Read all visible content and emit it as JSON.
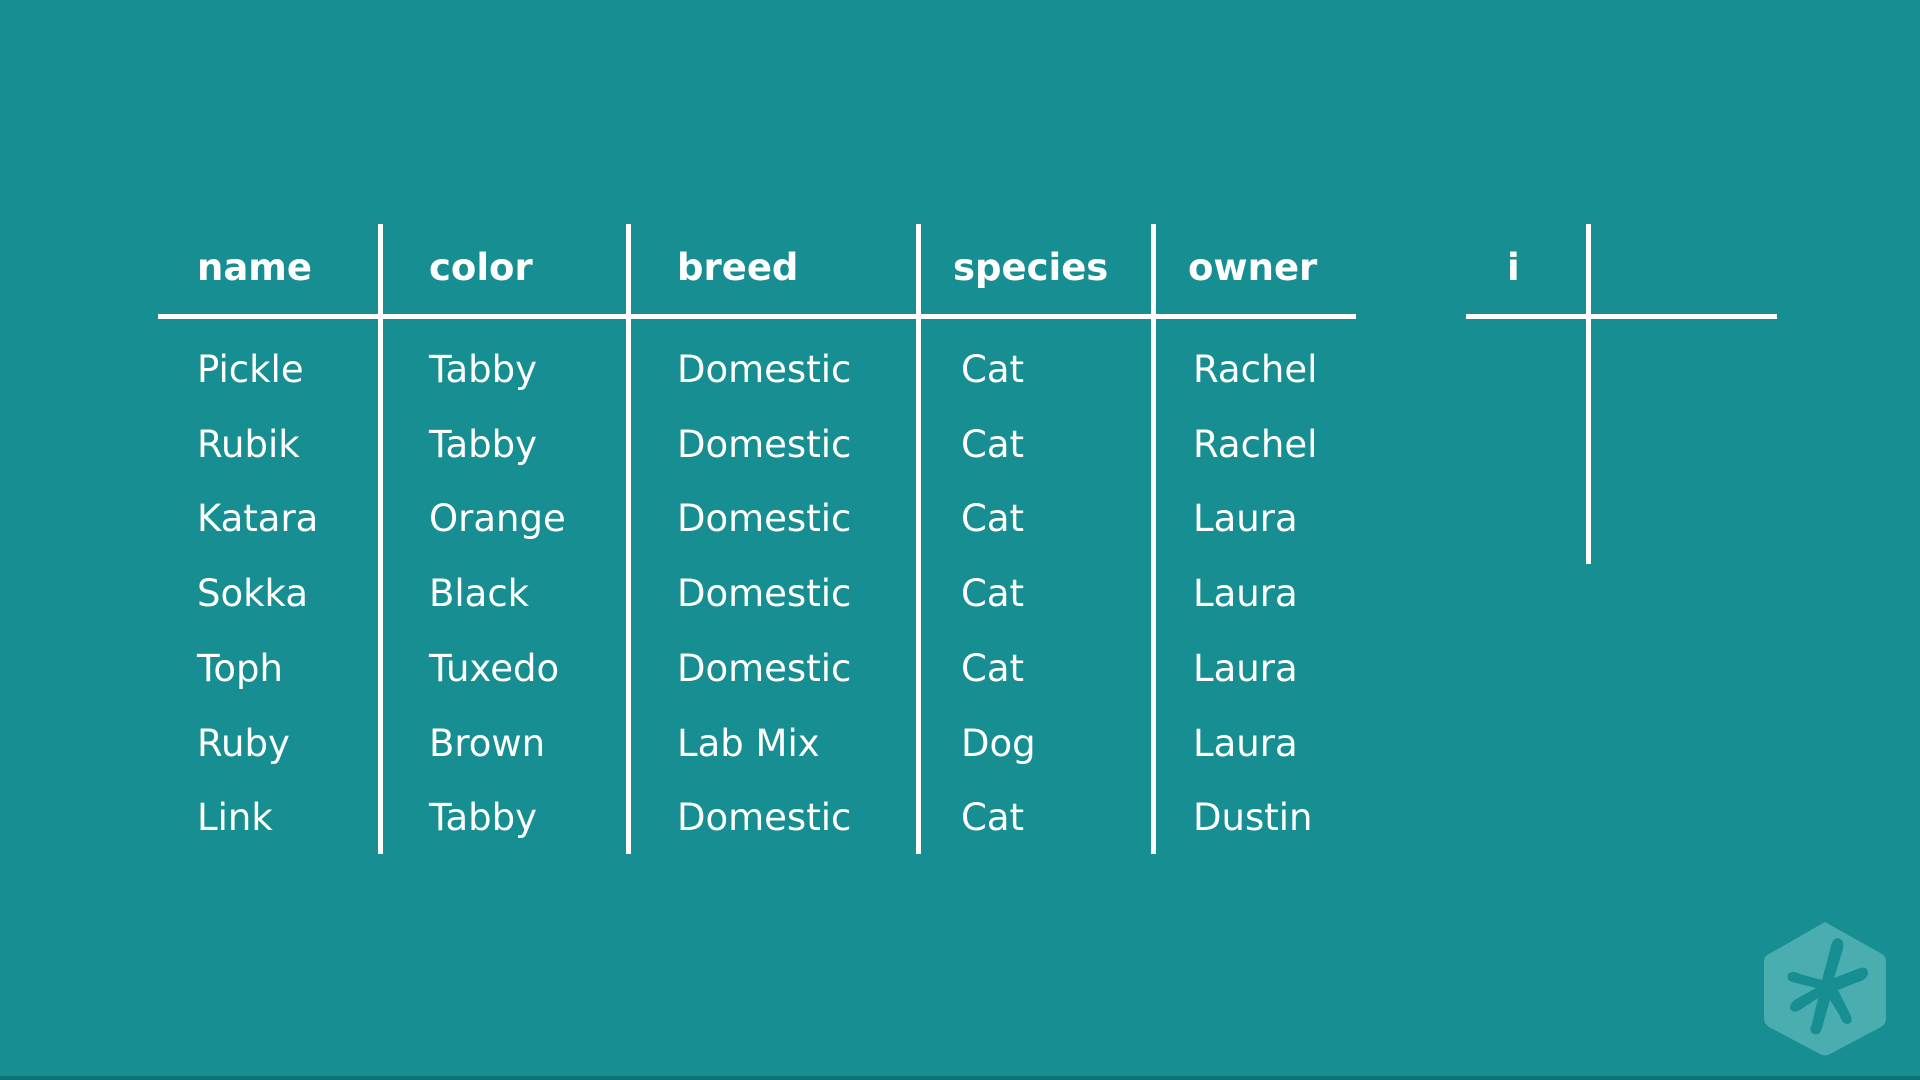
{
  "table": {
    "columns": [
      "name",
      "color",
      "breed",
      "species",
      "owner"
    ],
    "rows": [
      [
        "Pickle",
        "Tabby",
        "Domestic",
        "Cat",
        "Rachel"
      ],
      [
        "Rubik",
        "Tabby",
        "Domestic",
        "Cat",
        "Rachel"
      ],
      [
        "Katara",
        "Orange",
        "Domestic",
        "Cat",
        "Laura"
      ],
      [
        "Sokka",
        "Black",
        "Domestic",
        "Cat",
        "Laura"
      ],
      [
        "Toph",
        "Tuxedo",
        "Domestic",
        "Cat",
        "Laura"
      ],
      [
        "Ruby",
        "Brown",
        "Lab Mix",
        "Dog",
        "Laura"
      ],
      [
        "Link",
        "Tabby",
        "Domestic",
        "Cat",
        "Dustin"
      ]
    ]
  },
  "index_table": {
    "columns": [
      "i"
    ]
  },
  "logo": {
    "icon": "treehouse-frog-logo",
    "color": "#4aaeb0"
  },
  "colors": {
    "background": "#178e91",
    "foreground": "#ffffff"
  }
}
